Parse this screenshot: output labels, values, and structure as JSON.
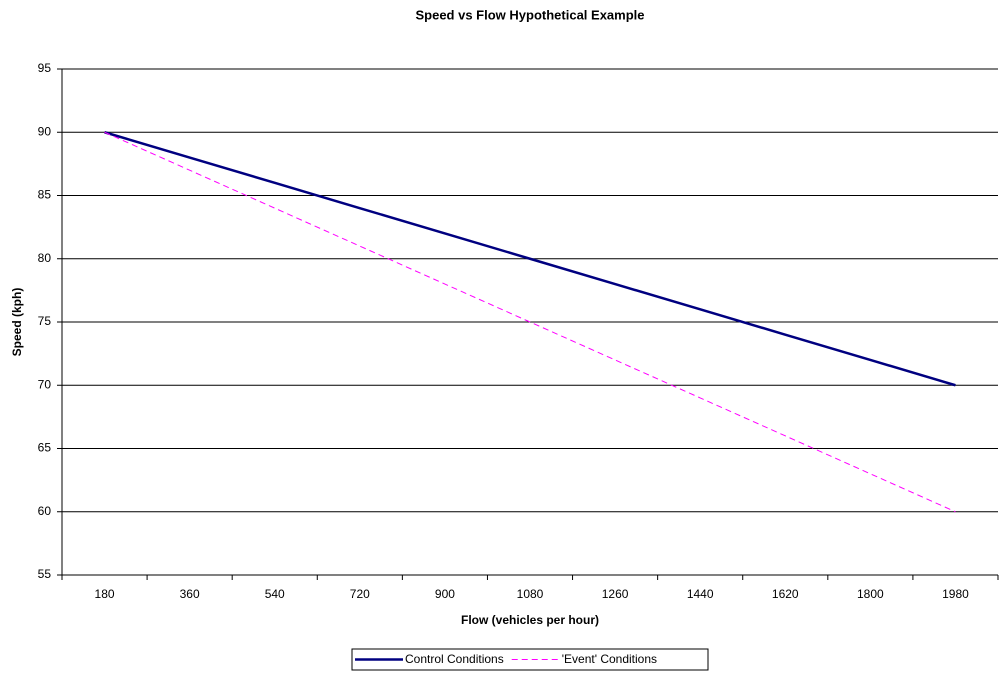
{
  "chart_data": {
    "type": "line",
    "title": "Speed vs Flow Hypothetical Example",
    "x_label": "Flow (vehicles per hour)",
    "y_label": "Speed (kph)",
    "categories": [
      180,
      360,
      540,
      720,
      900,
      1080,
      1260,
      1440,
      1620,
      1800,
      1980
    ],
    "series": [
      {
        "name": "Control Conditions",
        "color": "#000080",
        "dash": false,
        "values": [
          90,
          88,
          86,
          84,
          82,
          80,
          78,
          76,
          74,
          72,
          70
        ]
      },
      {
        "name": "'Event' Conditions",
        "color": "#ff00ff",
        "dash": true,
        "values": [
          90,
          87,
          84,
          81,
          78,
          75,
          72,
          69,
          66,
          63,
          60
        ]
      }
    ],
    "ylim": [
      55,
      95
    ],
    "yticks": [
      55,
      60,
      65,
      70,
      75,
      80,
      85,
      90,
      95
    ],
    "grid": true,
    "legend": "bottom"
  }
}
